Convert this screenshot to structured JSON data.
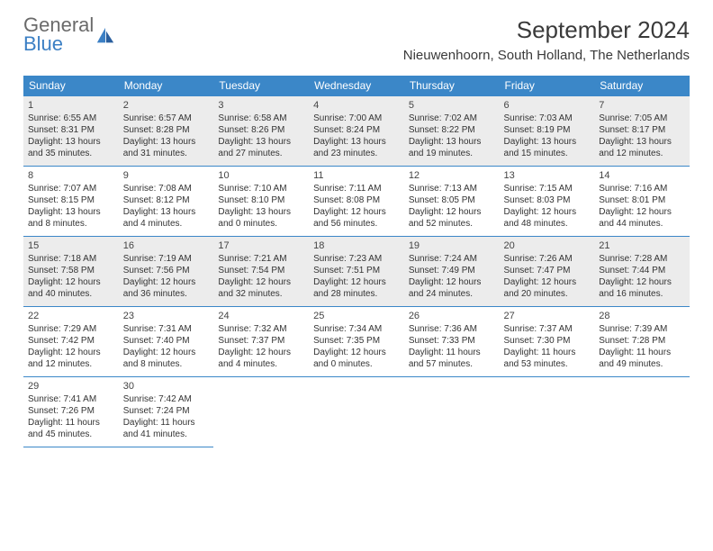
{
  "logo": {
    "line1": "General",
    "line2": "Blue"
  },
  "title": "September 2024",
  "location": "Nieuwenhoorn, South Holland, The Netherlands",
  "colors": {
    "header_bg": "#3b87c8",
    "header_text": "#ffffff",
    "border": "#3b87c8",
    "shaded_bg": "#ececec",
    "text": "#333333",
    "logo_general": "#6a6a6a",
    "logo_blue": "#3b7fc4"
  },
  "typography": {
    "title_fontsize": 26,
    "location_fontsize": 15,
    "header_fontsize": 12,
    "cell_fontsize": 10
  },
  "days_header": [
    "Sunday",
    "Monday",
    "Tuesday",
    "Wednesday",
    "Thursday",
    "Friday",
    "Saturday"
  ],
  "weeks": [
    [
      {
        "n": "1",
        "sr": "6:55 AM",
        "ss": "8:31 PM",
        "dl": "13 hours and 35 minutes."
      },
      {
        "n": "2",
        "sr": "6:57 AM",
        "ss": "8:28 PM",
        "dl": "13 hours and 31 minutes."
      },
      {
        "n": "3",
        "sr": "6:58 AM",
        "ss": "8:26 PM",
        "dl": "13 hours and 27 minutes."
      },
      {
        "n": "4",
        "sr": "7:00 AM",
        "ss": "8:24 PM",
        "dl": "13 hours and 23 minutes."
      },
      {
        "n": "5",
        "sr": "7:02 AM",
        "ss": "8:22 PM",
        "dl": "13 hours and 19 minutes."
      },
      {
        "n": "6",
        "sr": "7:03 AM",
        "ss": "8:19 PM",
        "dl": "13 hours and 15 minutes."
      },
      {
        "n": "7",
        "sr": "7:05 AM",
        "ss": "8:17 PM",
        "dl": "13 hours and 12 minutes."
      }
    ],
    [
      {
        "n": "8",
        "sr": "7:07 AM",
        "ss": "8:15 PM",
        "dl": "13 hours and 8 minutes."
      },
      {
        "n": "9",
        "sr": "7:08 AM",
        "ss": "8:12 PM",
        "dl": "13 hours and 4 minutes."
      },
      {
        "n": "10",
        "sr": "7:10 AM",
        "ss": "8:10 PM",
        "dl": "13 hours and 0 minutes."
      },
      {
        "n": "11",
        "sr": "7:11 AM",
        "ss": "8:08 PM",
        "dl": "12 hours and 56 minutes."
      },
      {
        "n": "12",
        "sr": "7:13 AM",
        "ss": "8:05 PM",
        "dl": "12 hours and 52 minutes."
      },
      {
        "n": "13",
        "sr": "7:15 AM",
        "ss": "8:03 PM",
        "dl": "12 hours and 48 minutes."
      },
      {
        "n": "14",
        "sr": "7:16 AM",
        "ss": "8:01 PM",
        "dl": "12 hours and 44 minutes."
      }
    ],
    [
      {
        "n": "15",
        "sr": "7:18 AM",
        "ss": "7:58 PM",
        "dl": "12 hours and 40 minutes."
      },
      {
        "n": "16",
        "sr": "7:19 AM",
        "ss": "7:56 PM",
        "dl": "12 hours and 36 minutes."
      },
      {
        "n": "17",
        "sr": "7:21 AM",
        "ss": "7:54 PM",
        "dl": "12 hours and 32 minutes."
      },
      {
        "n": "18",
        "sr": "7:23 AM",
        "ss": "7:51 PM",
        "dl": "12 hours and 28 minutes."
      },
      {
        "n": "19",
        "sr": "7:24 AM",
        "ss": "7:49 PM",
        "dl": "12 hours and 24 minutes."
      },
      {
        "n": "20",
        "sr": "7:26 AM",
        "ss": "7:47 PM",
        "dl": "12 hours and 20 minutes."
      },
      {
        "n": "21",
        "sr": "7:28 AM",
        "ss": "7:44 PM",
        "dl": "12 hours and 16 minutes."
      }
    ],
    [
      {
        "n": "22",
        "sr": "7:29 AM",
        "ss": "7:42 PM",
        "dl": "12 hours and 12 minutes."
      },
      {
        "n": "23",
        "sr": "7:31 AM",
        "ss": "7:40 PM",
        "dl": "12 hours and 8 minutes."
      },
      {
        "n": "24",
        "sr": "7:32 AM",
        "ss": "7:37 PM",
        "dl": "12 hours and 4 minutes."
      },
      {
        "n": "25",
        "sr": "7:34 AM",
        "ss": "7:35 PM",
        "dl": "12 hours and 0 minutes."
      },
      {
        "n": "26",
        "sr": "7:36 AM",
        "ss": "7:33 PM",
        "dl": "11 hours and 57 minutes."
      },
      {
        "n": "27",
        "sr": "7:37 AM",
        "ss": "7:30 PM",
        "dl": "11 hours and 53 minutes."
      },
      {
        "n": "28",
        "sr": "7:39 AM",
        "ss": "7:28 PM",
        "dl": "11 hours and 49 minutes."
      }
    ],
    [
      {
        "n": "29",
        "sr": "7:41 AM",
        "ss": "7:26 PM",
        "dl": "11 hours and 45 minutes."
      },
      {
        "n": "30",
        "sr": "7:42 AM",
        "ss": "7:24 PM",
        "dl": "11 hours and 41 minutes."
      },
      null,
      null,
      null,
      null,
      null
    ]
  ],
  "shaded_rows": [
    0,
    2
  ],
  "labels": {
    "sunrise": "Sunrise:",
    "sunset": "Sunset:",
    "daylight": "Daylight:"
  }
}
